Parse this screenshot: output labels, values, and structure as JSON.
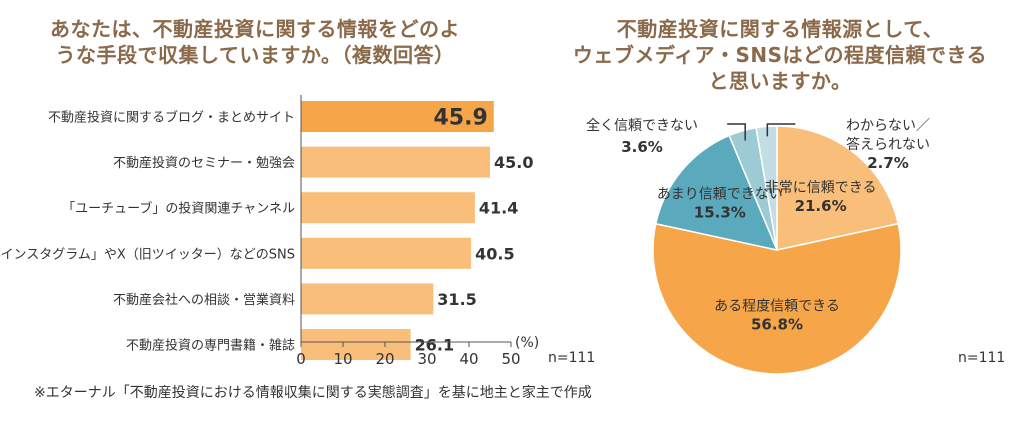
{
  "left": {
    "title": "あなたは、不動産投資に関する情報をどのよ\nうな手段で収集していますか。（複数回答）",
    "n_label": "n=111"
  },
  "right": {
    "title": "不動産投資に関する情報源として、\nウェブメディア・SNSはどの程度信頼できる\nと思いますか。",
    "n_label": "n=111"
  },
  "footnote": "※エターナル「不動産投資における情報収集に関する実態調査」を基に地主と家主で作成",
  "colors": {
    "bar": "#f9bf7a",
    "bar_highlight": "#f6a548",
    "title": "#8a6a4a",
    "pie_dark": "#5aa9bd",
    "pie_mid": "#9ccbd6",
    "pie_light": "#c3dde4"
  },
  "chart_data": [
    {
      "type": "bar",
      "orientation": "horizontal",
      "categories": [
        "不動産投資に関するブログ・まとめサイト",
        "不動産投資のセミナー・勉強会",
        "「ユーチューブ」の投資関連チャンネル",
        "「インスタグラム」やX（旧ツイッター）などのSNS",
        "不動産会社への相談・営業資料",
        "不動産投資の専門書籍・雑誌"
      ],
      "values": [
        45.9,
        45.0,
        41.4,
        40.5,
        31.5,
        26.1
      ],
      "value_labels": [
        "45.9",
        "45.0",
        "41.4",
        "40.5",
        "31.5",
        "26.1"
      ],
      "highlight_index": 0,
      "xlim": [
        0,
        50
      ],
      "xticks": [
        "0",
        "10",
        "20",
        "30",
        "40",
        "50"
      ],
      "unit_label": "(%)"
    },
    {
      "type": "pie",
      "start": "top",
      "direction": "clockwise",
      "slices": [
        {
          "label": "非常に信頼できる",
          "value": 21.6,
          "value_label": "21.6%",
          "color": "#f9bf7a"
        },
        {
          "label": "ある程度信頼できる",
          "value": 56.8,
          "value_label": "56.8%",
          "color": "#f6a548"
        },
        {
          "label": "あまり信頼できない",
          "value": 15.3,
          "value_label": "15.3%",
          "color": "#5aa9bd"
        },
        {
          "label": "全く信頼できない",
          "value": 3.6,
          "value_label": "3.6%",
          "color": "#9ccbd6"
        },
        {
          "label": "わからない／\n答えられない",
          "value": 2.7,
          "value_label": "2.7%",
          "color": "#c3dde4"
        }
      ]
    }
  ]
}
